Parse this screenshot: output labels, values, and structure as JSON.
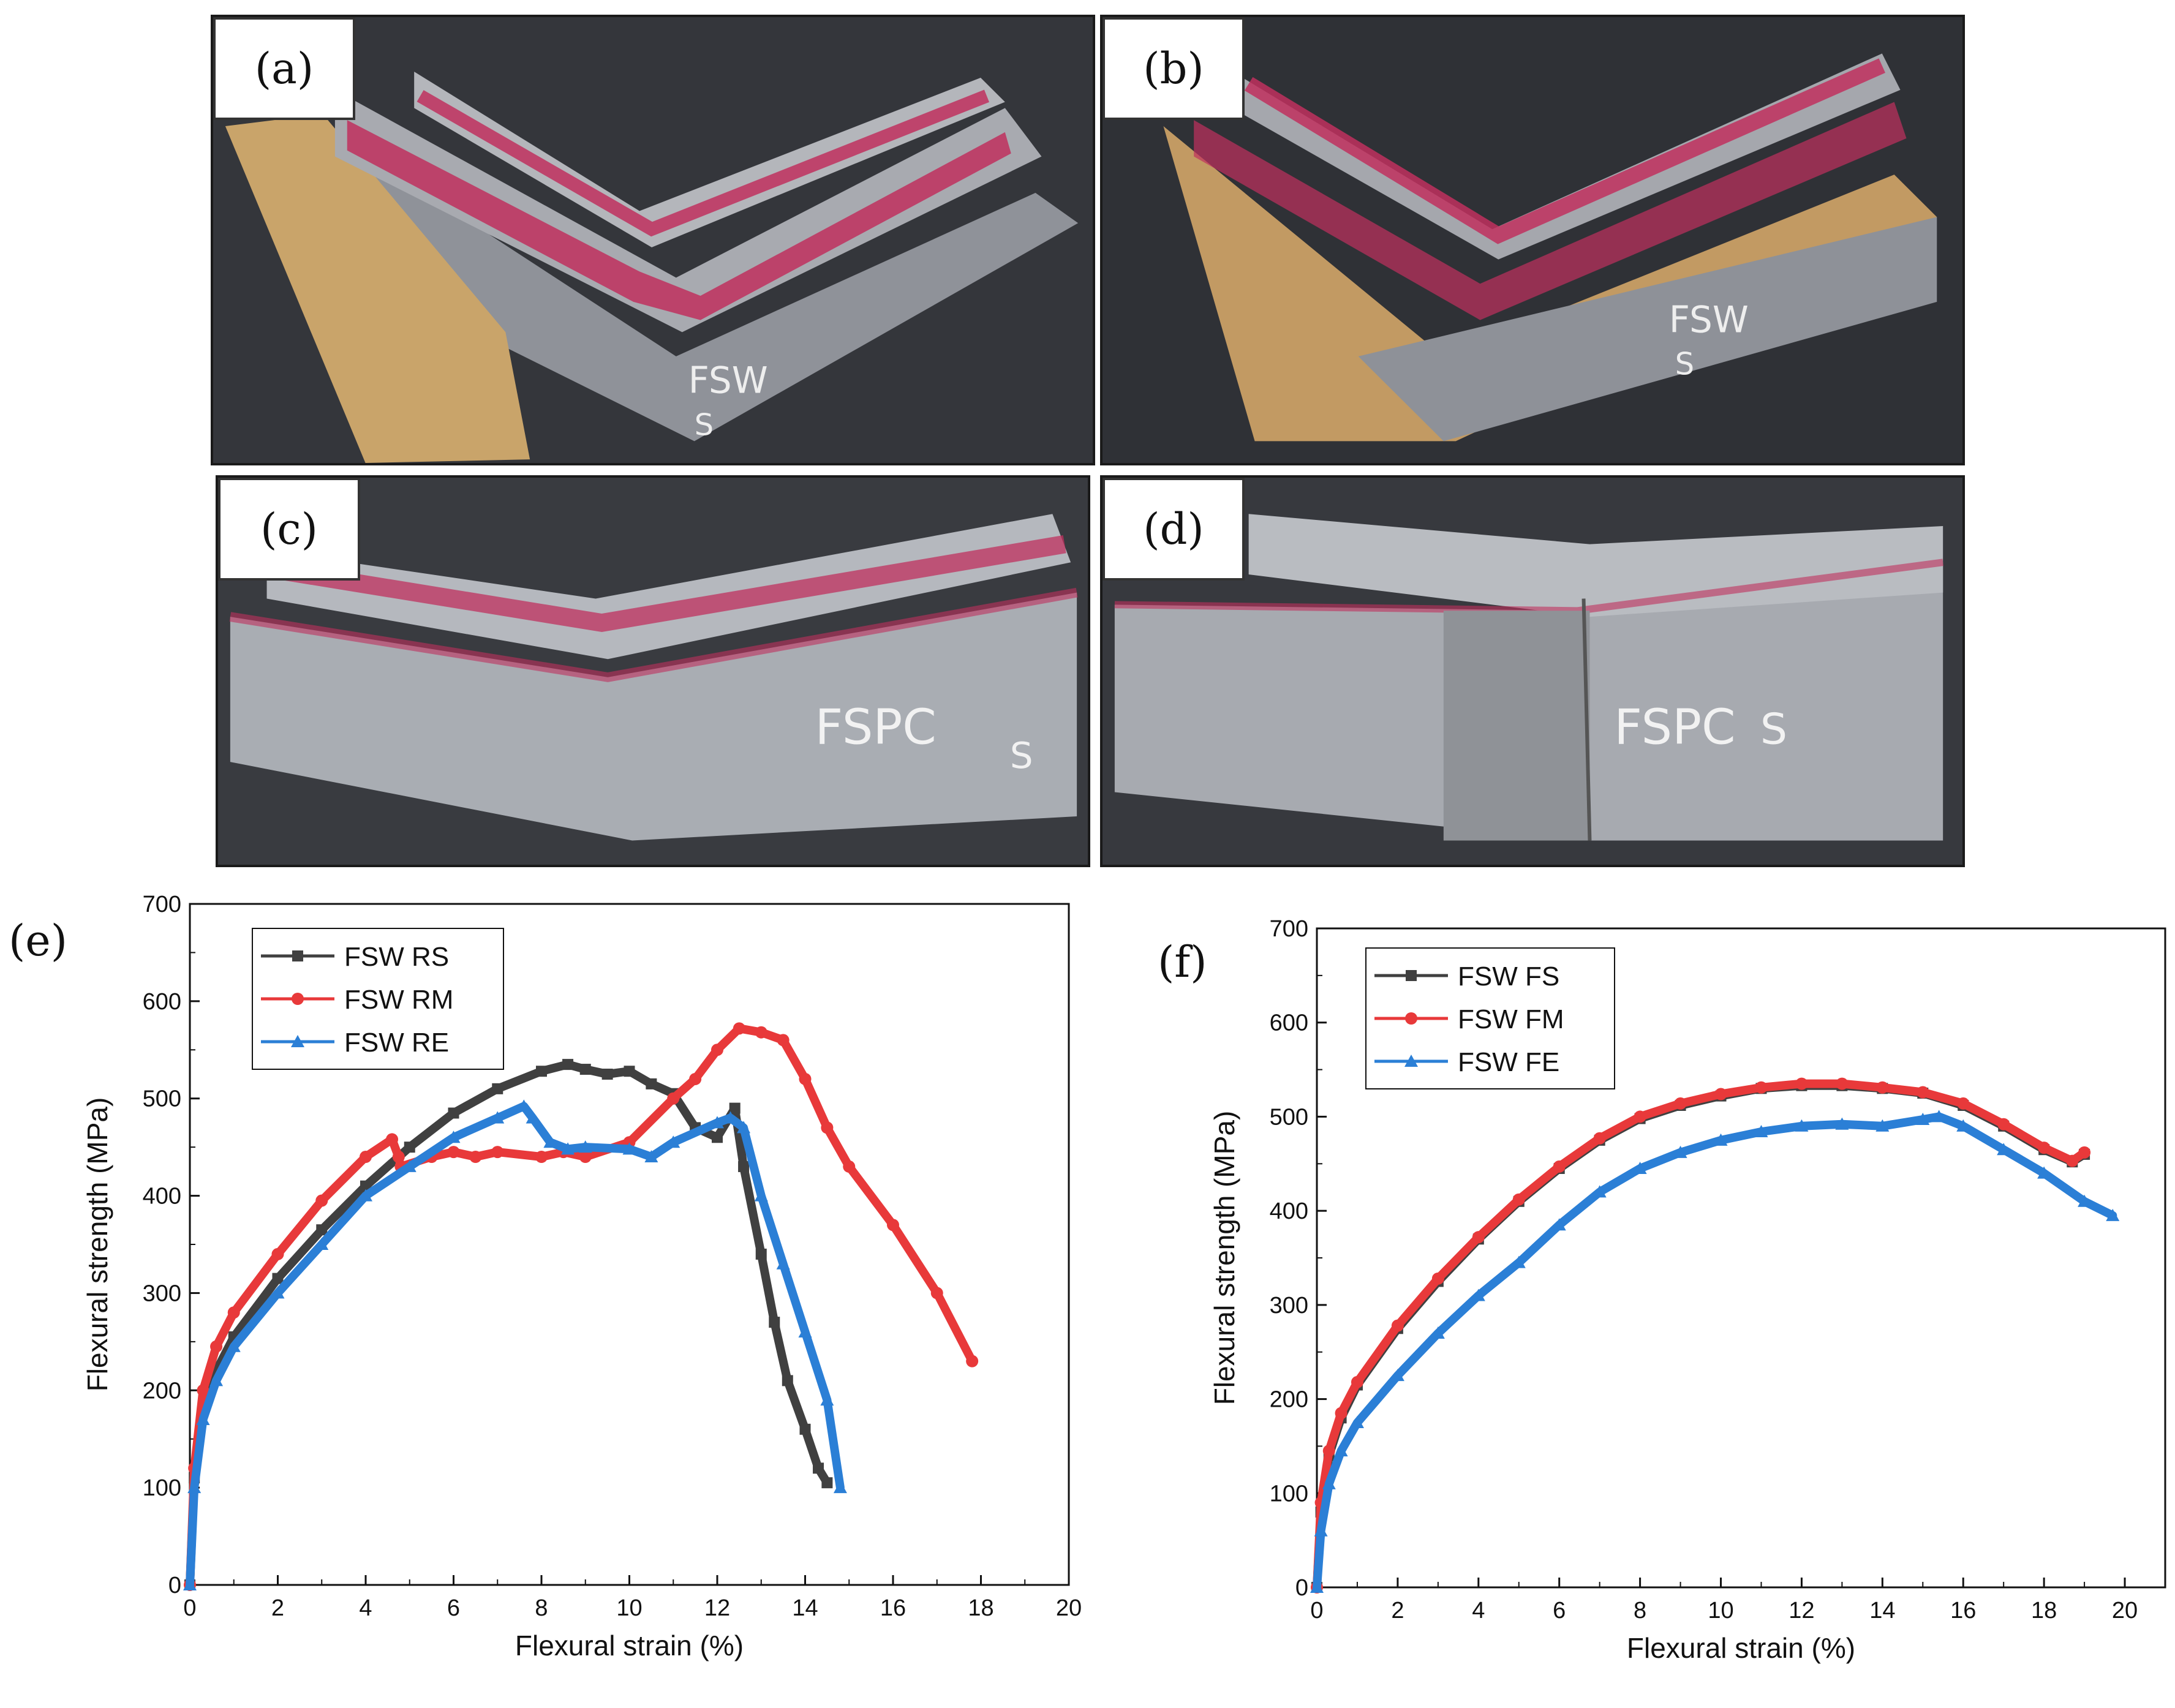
{
  "photos": [
    {
      "label": "(a)",
      "tone": "#c9a46a",
      "marking_a": "FSW",
      "marking_b": "S"
    },
    {
      "label": "(b)",
      "tone": "#c29a63",
      "marking_a": "FSW",
      "marking_b": "S"
    },
    {
      "label": "(c)",
      "tone": "#a9adb3",
      "marking_a": "FSPC",
      "marking_b": "S"
    },
    {
      "label": "(d)",
      "tone": "#a7aab0",
      "marking_a": "FSPC",
      "marking_b": "S"
    }
  ],
  "colors": {
    "black": "#404040",
    "red": "#e8393a",
    "blue": "#2b7fd6",
    "stain": "#c0305e"
  },
  "chart_data": [
    {
      "panel_label": "(e)",
      "type": "line",
      "xlabel": "Flexural strain (%)",
      "ylabel": "Flexural strength (MPa)",
      "xlim": [
        0,
        20
      ],
      "ylim": [
        0,
        700
      ],
      "xticks": [
        0,
        2,
        4,
        6,
        8,
        10,
        12,
        14,
        16,
        18,
        20
      ],
      "yticks": [
        0,
        100,
        200,
        300,
        400,
        500,
        600,
        700
      ],
      "legend_position": "top-left",
      "grid": false,
      "series": [
        {
          "name": "FSW RS",
          "color": "#404040",
          "marker": "square",
          "x": [
            0,
            0.1,
            0.3,
            0.6,
            1,
            2,
            3,
            4,
            5,
            6,
            7,
            8,
            8.6,
            9,
            9.5,
            10,
            10.5,
            11,
            11.5,
            12,
            12.4,
            12.6,
            13,
            13.3,
            13.6,
            14,
            14.3,
            14.5
          ],
          "y": [
            0,
            110,
            180,
            220,
            255,
            315,
            365,
            410,
            450,
            485,
            510,
            528,
            535,
            530,
            525,
            528,
            515,
            505,
            470,
            460,
            490,
            430,
            340,
            270,
            210,
            160,
            120,
            105
          ]
        },
        {
          "name": "FSW RM",
          "color": "#e8393a",
          "marker": "circle",
          "x": [
            0,
            0.1,
            0.3,
            0.6,
            1,
            2,
            3,
            4,
            4.6,
            4.75,
            4.8,
            5.5,
            6,
            6.5,
            7,
            8,
            8.5,
            9,
            10,
            11,
            11.5,
            12,
            12.5,
            13,
            13.5,
            14,
            14.5,
            15,
            16,
            17,
            17.8
          ],
          "y": [
            0,
            120,
            200,
            245,
            280,
            340,
            395,
            440,
            458,
            440,
            430,
            440,
            445,
            440,
            445,
            440,
            445,
            440,
            455,
            500,
            520,
            550,
            572,
            568,
            560,
            520,
            470,
            430,
            370,
            300,
            230
          ]
        },
        {
          "name": "FSW RE",
          "color": "#2b7fd6",
          "marker": "triangle",
          "x": [
            0,
            0.1,
            0.3,
            0.6,
            1,
            2,
            3,
            4,
            5,
            6,
            7,
            7.6,
            7.8,
            8.2,
            8.6,
            9,
            10,
            10.5,
            11,
            12,
            12.3,
            12.6,
            13,
            13.5,
            14,
            14.5,
            14.8
          ],
          "y": [
            0,
            100,
            170,
            210,
            245,
            300,
            350,
            400,
            430,
            460,
            480,
            492,
            480,
            455,
            448,
            450,
            448,
            440,
            455,
            475,
            480,
            470,
            400,
            330,
            260,
            190,
            100
          ]
        }
      ]
    },
    {
      "panel_label": "(f)",
      "type": "line",
      "xlabel": "Flexural strain (%)",
      "ylabel": "Flexural strength (MPa)",
      "xlim": [
        0,
        21
      ],
      "ylim": [
        0,
        700
      ],
      "xticks": [
        0,
        2,
        4,
        6,
        8,
        10,
        12,
        14,
        16,
        18,
        20
      ],
      "yticks": [
        0,
        100,
        200,
        300,
        400,
        500,
        600,
        700
      ],
      "legend_position": "top-left",
      "grid": false,
      "series": [
        {
          "name": "FSW FS",
          "color": "#404040",
          "marker": "square",
          "x": [
            0,
            0.1,
            0.3,
            0.6,
            1,
            2,
            3,
            4,
            5,
            6,
            7,
            8,
            9,
            10,
            11,
            12,
            13,
            14,
            15,
            16,
            17,
            18,
            18.7,
            19
          ],
          "y": [
            0,
            80,
            140,
            180,
            215,
            275,
            325,
            370,
            410,
            445,
            475,
            498,
            512,
            522,
            530,
            533,
            533,
            530,
            525,
            512,
            490,
            465,
            452,
            460
          ]
        },
        {
          "name": "FSW FM",
          "color": "#e8393a",
          "marker": "circle",
          "x": [
            0,
            0.1,
            0.3,
            0.6,
            1,
            2,
            3,
            4,
            5,
            6,
            7,
            8,
            9,
            10,
            11,
            12,
            13,
            14,
            15,
            16,
            17,
            18,
            18.7,
            19
          ],
          "y": [
            0,
            90,
            145,
            185,
            218,
            278,
            328,
            372,
            412,
            447,
            477,
            500,
            514,
            524,
            531,
            535,
            535,
            531,
            526,
            514,
            492,
            467,
            453,
            462
          ]
        },
        {
          "name": "FSW FE",
          "color": "#2b7fd6",
          "marker": "triangle",
          "x": [
            0,
            0.1,
            0.3,
            0.6,
            1,
            2,
            3,
            4,
            5,
            6,
            7,
            8,
            9,
            10,
            11,
            12,
            13,
            14,
            15,
            15.4,
            16,
            17,
            18,
            19,
            19.7
          ],
          "y": [
            0,
            60,
            110,
            145,
            175,
            225,
            270,
            310,
            345,
            385,
            420,
            445,
            462,
            475,
            484,
            490,
            492,
            490,
            497,
            500,
            490,
            465,
            440,
            410,
            395
          ]
        }
      ]
    }
  ]
}
